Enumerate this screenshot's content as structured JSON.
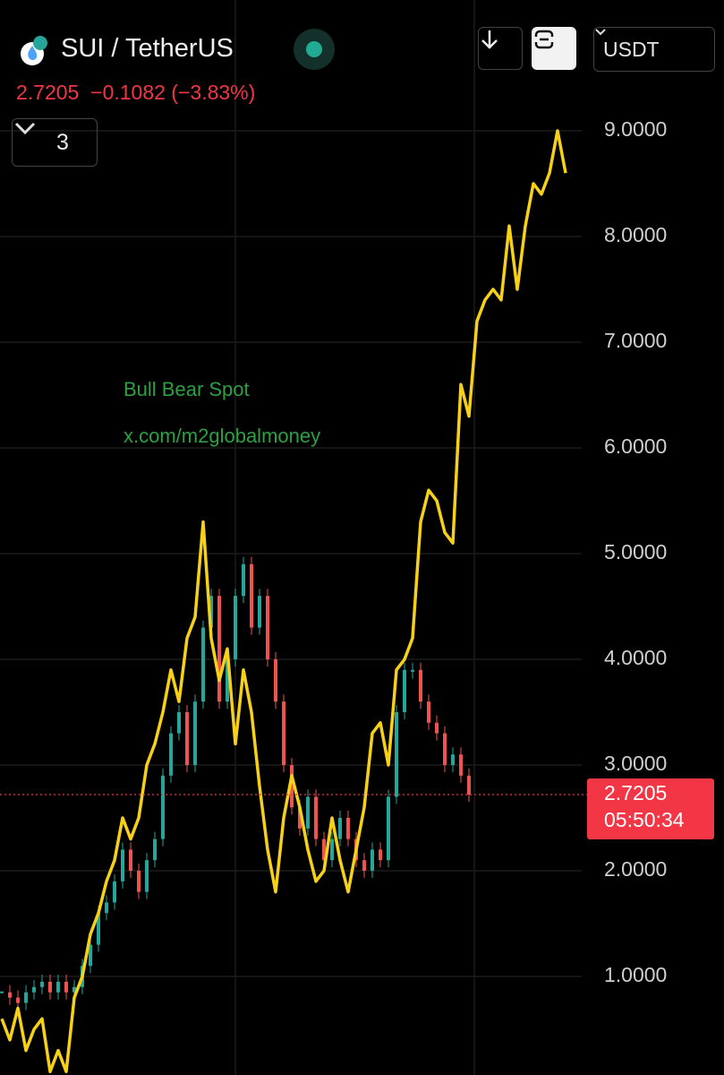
{
  "header": {
    "symbol": "SUI / TetherUS",
    "change": "−0.1082 (−3.83%)",
    "indicator_count": "3",
    "currency": "USDT"
  },
  "watermark": {
    "line1": "Bull Bear Spot",
    "line2": "x.com/m2globalmoney"
  },
  "chart_data": {
    "type": "candlestick",
    "last_price": 2.7205,
    "countdown": "05:50:34",
    "last_price_color": "#f23645",
    "ylim": [
      0.068,
      10.237
    ],
    "yticks": [
      {
        "value": 1,
        "label": "1.0000"
      },
      {
        "value": 2,
        "label": "2.0000"
      },
      {
        "value": 3,
        "label": "3.0000"
      },
      {
        "value": 4,
        "label": "4.0000"
      },
      {
        "value": 5,
        "label": "5.0000"
      },
      {
        "value": 6,
        "label": "6.0000"
      },
      {
        "value": 7,
        "label": "7.0000"
      },
      {
        "value": 8,
        "label": "8.0000"
      },
      {
        "value": 9,
        "label": "9.0000"
      }
    ],
    "grid": true,
    "series": [
      {
        "type": "candlestick",
        "up_color": "#26a69a",
        "down_color": "#ef5350",
        "values": [
          0.85,
          0.8,
          0.75,
          0.85,
          0.9,
          0.95,
          0.85,
          0.95,
          0.85,
          0.9,
          1.1,
          1.3,
          1.6,
          1.7,
          1.9,
          2.2,
          2.0,
          1.8,
          2.1,
          2.3,
          2.9,
          3.3,
          3.5,
          3.0,
          3.6,
          4.3,
          4.6,
          3.6,
          4.0,
          4.6,
          4.9,
          4.3,
          4.6,
          4.0,
          3.6,
          3.0,
          2.6,
          2.4,
          2.7,
          2.3,
          2.1,
          2.3,
          2.5,
          2.3,
          2.1,
          2.0,
          2.2,
          2.1,
          2.7,
          3.5,
          3.9,
          3.9,
          3.6,
          3.4,
          3.3,
          3.0,
          3.1,
          2.9,
          2.7205,
          null,
          null,
          null,
          null,
          null,
          null,
          null,
          null,
          null,
          null,
          null,
          null
        ]
      },
      {
        "type": "line",
        "color": "#f7d117",
        "values": [
          0.6,
          0.4,
          0.7,
          0.3,
          0.5,
          0.6,
          0.1,
          0.3,
          0.1,
          0.8,
          1.0,
          1.4,
          1.6,
          1.9,
          2.1,
          2.5,
          2.3,
          2.5,
          3.0,
          3.2,
          3.5,
          3.9,
          3.6,
          4.2,
          4.4,
          5.3,
          4.2,
          3.8,
          4.1,
          3.2,
          3.9,
          3.5,
          2.8,
          2.2,
          1.8,
          2.5,
          2.9,
          2.6,
          2.2,
          1.9,
          2.0,
          2.5,
          2.1,
          1.8,
          2.2,
          2.6,
          3.3,
          3.4,
          3.0,
          3.9,
          4.0,
          4.2,
          5.3,
          5.6,
          5.5,
          5.2,
          5.1,
          6.6,
          6.3,
          7.2,
          7.4,
          7.5,
          7.4,
          8.1,
          7.5,
          8.1,
          8.5,
          8.4,
          8.6,
          9.0,
          8.6
        ]
      }
    ]
  }
}
